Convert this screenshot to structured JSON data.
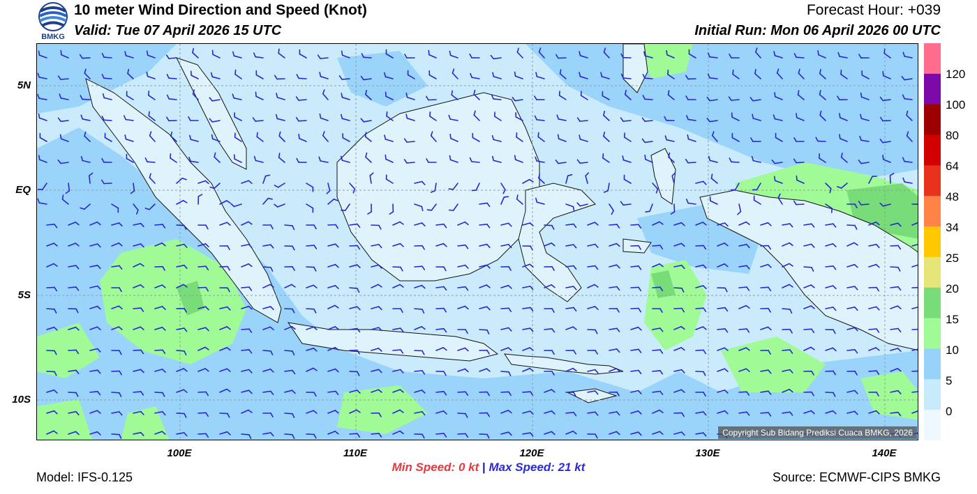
{
  "header": {
    "title": "10 meter Wind Direction and Speed (Knot)",
    "valid": "Valid: Tue 07 April 2026 15 UTC",
    "forecast_hour": "Forecast Hour: +039",
    "initial_run": "Initial Run: Mon 06 April 2026 00 UTC",
    "logo_text": "BMKG"
  },
  "map": {
    "lat_labels": [
      "5N",
      "EQ",
      "5S",
      "10S"
    ],
    "lon_labels": [
      "100E",
      "110E",
      "120E",
      "130E",
      "140E"
    ],
    "copyright": "Copyright Sub Bidang Prediksi Cuaca BMKG, 2026",
    "land_color": "#dff3fd",
    "barb_color": "#2626d6"
  },
  "colorbar": {
    "labels": [
      "120",
      "100",
      "80",
      "64",
      "48",
      "34",
      "25",
      "20",
      "15",
      "10",
      "5",
      "0"
    ],
    "colors": [
      "#ff6c8c",
      "#7d0aa8",
      "#9c0000",
      "#d20000",
      "#e8321e",
      "#ff8246",
      "#ffc800",
      "#e6e678",
      "#78dc78",
      "#a0fa96",
      "#96d2fa",
      "#c8ebfb",
      "#eef8ff"
    ]
  },
  "footer": {
    "min_speed": "Min Speed:   0 kt",
    "separator": "|",
    "max_speed": "Max Speed:  21 kt",
    "model": "Model: IFS-0.125",
    "source": "Source: ECMWF-CIPS BMKG"
  }
}
